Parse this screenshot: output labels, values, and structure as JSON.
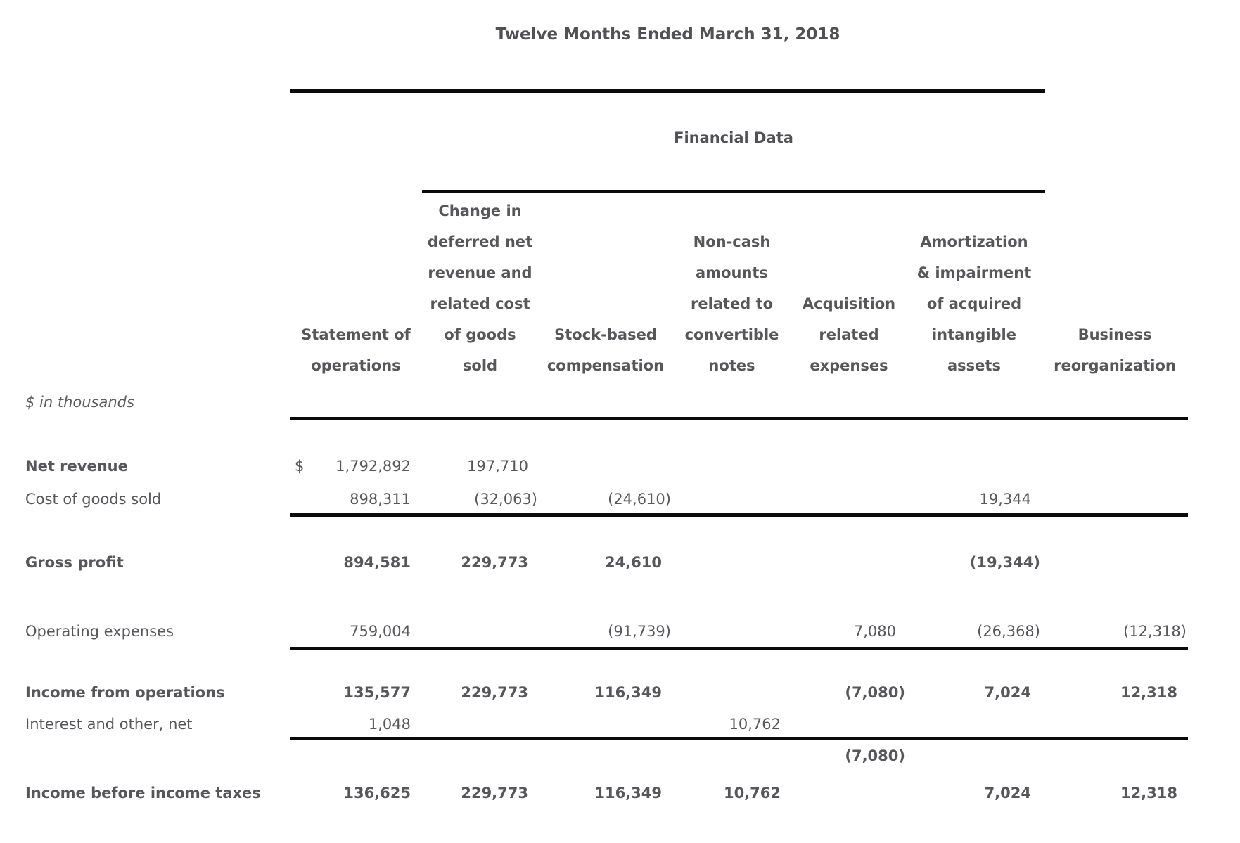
{
  "title": "Twelve Months Ended March 31, 2018",
  "group_header": "Financial Data",
  "unit_note": "$ in thousands",
  "columns": [
    {
      "label": "Statement of\noperations"
    },
    {
      "label": "Change in\ndeferred net\nrevenue and\nrelated cost\nof goods\nsold"
    },
    {
      "label": "Stock-based\ncompensation"
    },
    {
      "label": "Non-cash\namounts\nrelated to\nconvertible\nnotes"
    },
    {
      "label": "Acquisition\nrelated\nexpenses"
    },
    {
      "label": "Amortization\n& impairment\nof acquired\nintangible\nassets"
    },
    {
      "label": "Business\nreorganization"
    }
  ],
  "rows": [
    {
      "label": "Net revenue",
      "bold_label": true,
      "bold_values": false,
      "currency": "$",
      "values": [
        "1,792,892",
        "197,710",
        "",
        "",
        "",
        "",
        ""
      ]
    },
    {
      "label": "Cost of goods sold",
      "bold_label": false,
      "bold_values": false,
      "currency": "",
      "values": [
        "898,311",
        "(32,063)",
        "(24,610)",
        "",
        "",
        "19,344",
        ""
      ]
    },
    {
      "label": "Gross profit",
      "bold_label": true,
      "bold_values": true,
      "currency": "",
      "values": [
        "894,581",
        "229,773",
        "24,610",
        "",
        "",
        "(19,344)",
        ""
      ]
    },
    {
      "label": "Operating expenses",
      "bold_label": false,
      "bold_values": false,
      "currency": "",
      "values": [
        "759,004",
        "",
        "(91,739)",
        "",
        "7,080",
        "(26,368)",
        "(12,318)"
      ]
    },
    {
      "label": "Income from operations",
      "bold_label": true,
      "bold_values": true,
      "currency": "",
      "values": [
        "135,577",
        "229,773",
        "116,349",
        "",
        "(7,080)",
        "7,024",
        "12,318"
      ]
    },
    {
      "label": "Interest and other, net",
      "bold_label": false,
      "bold_values": false,
      "currency": "",
      "values": [
        "1,048",
        "",
        "",
        "10,762",
        "",
        "",
        ""
      ]
    },
    {
      "label": "",
      "bold_label": true,
      "bold_values": true,
      "currency": "",
      "values": [
        "",
        "",
        "",
        "",
        "(7,080)",
        "",
        ""
      ]
    },
    {
      "label": "Income before income taxes",
      "bold_label": true,
      "bold_values": true,
      "currency": "",
      "values": [
        "136,625",
        "229,773",
        "116,349",
        "10,762",
        "",
        "7,024",
        "12,318"
      ]
    }
  ]
}
